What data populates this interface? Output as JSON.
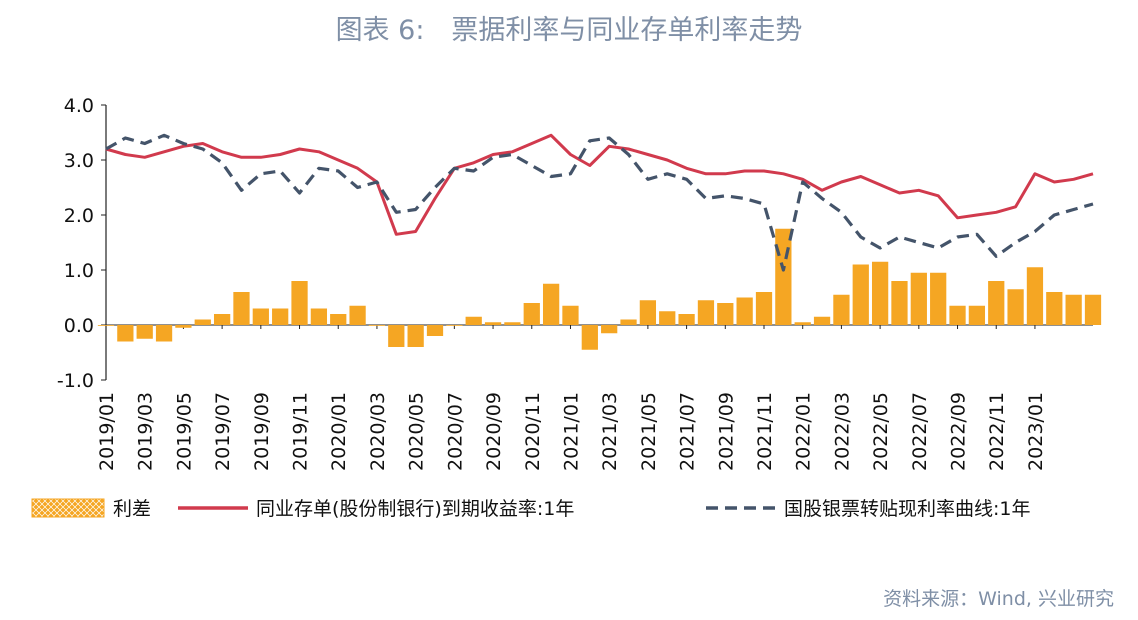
{
  "title": "图表 6:　票据利率与同业存单利率走势",
  "source": "资料来源：Wind, 兴业研究",
  "colors": {
    "spread": "#F5A623",
    "ncd": "#D13A4D",
    "bill": "#44546A"
  },
  "chart_data": {
    "type": "line",
    "ylim": [
      -1.0,
      4.0
    ],
    "y_ticks": [
      "4.0",
      "3.0",
      "2.0",
      "1.0",
      "0.0",
      "-1.0"
    ],
    "x_tick_labels": [
      "2019/01",
      "2019/03",
      "2019/05",
      "2019/07",
      "2019/09",
      "2019/11",
      "2020/01",
      "2020/03",
      "2020/05",
      "2020/07",
      "2020/09",
      "2020/11",
      "2021/01",
      "2021/03",
      "2021/05",
      "2021/07",
      "2021/09",
      "2021/11",
      "2022/01",
      "2022/03",
      "2022/05",
      "2022/07",
      "2022/09",
      "2022/11",
      "2023/01"
    ],
    "x_range": [
      "2019/01",
      "2023/04"
    ],
    "legend": [
      {
        "name": "利差",
        "style": "hatched-bar"
      },
      {
        "name": "同业存单(股份制银行)到期收益率:1年",
        "style": "solid-line"
      },
      {
        "name": "国股银票转贴现利率曲线:1年",
        "style": "dashed-line"
      }
    ],
    "series": [
      {
        "name": "同业存单(股份制银行)到期收益率:1年",
        "type": "line",
        "x": [
          "2019/01",
          "2019/02",
          "2019/03",
          "2019/04",
          "2019/05",
          "2019/06",
          "2019/07",
          "2019/08",
          "2019/09",
          "2019/10",
          "2019/11",
          "2019/12",
          "2020/01",
          "2020/02",
          "2020/03",
          "2020/04",
          "2020/05",
          "2020/06",
          "2020/07",
          "2020/08",
          "2020/09",
          "2020/10",
          "2020/11",
          "2020/12",
          "2021/01",
          "2021/02",
          "2021/03",
          "2021/04",
          "2021/05",
          "2021/06",
          "2021/07",
          "2021/08",
          "2021/09",
          "2021/10",
          "2021/11",
          "2021/12",
          "2022/01",
          "2022/02",
          "2022/03",
          "2022/04",
          "2022/05",
          "2022/06",
          "2022/07",
          "2022/08",
          "2022/09",
          "2022/10",
          "2022/11",
          "2022/12",
          "2023/01",
          "2023/02",
          "2023/03",
          "2023/04"
        ],
        "values": [
          3.2,
          3.1,
          3.05,
          3.15,
          3.25,
          3.3,
          3.15,
          3.05,
          3.05,
          3.1,
          3.2,
          3.15,
          3.0,
          2.85,
          2.6,
          1.65,
          1.7,
          2.3,
          2.85,
          2.95,
          3.1,
          3.15,
          3.3,
          3.45,
          3.1,
          2.9,
          3.25,
          3.2,
          3.1,
          3.0,
          2.85,
          2.75,
          2.75,
          2.8,
          2.8,
          2.75,
          2.65,
          2.45,
          2.6,
          2.7,
          2.55,
          2.4,
          2.45,
          2.35,
          1.95,
          2.0,
          2.05,
          2.15,
          2.75,
          2.6,
          2.65,
          2.75
        ]
      },
      {
        "name": "国股银票转贴现利率曲线:1年",
        "type": "line",
        "x": [
          "2019/01",
          "2019/02",
          "2019/03",
          "2019/04",
          "2019/05",
          "2019/06",
          "2019/07",
          "2019/08",
          "2019/09",
          "2019/10",
          "2019/11",
          "2019/12",
          "2020/01",
          "2020/02",
          "2020/03",
          "2020/04",
          "2020/05",
          "2020/06",
          "2020/07",
          "2020/08",
          "2020/09",
          "2020/10",
          "2020/11",
          "2020/12",
          "2021/01",
          "2021/02",
          "2021/03",
          "2021/04",
          "2021/05",
          "2021/06",
          "2021/07",
          "2021/08",
          "2021/09",
          "2021/10",
          "2021/11",
          "2021/12",
          "2022/01",
          "2022/02",
          "2022/03",
          "2022/04",
          "2022/05",
          "2022/06",
          "2022/07",
          "2022/08",
          "2022/09",
          "2022/10",
          "2022/11",
          "2022/12",
          "2023/01",
          "2023/02",
          "2023/03",
          "2023/04"
        ],
        "values": [
          3.2,
          3.4,
          3.3,
          3.45,
          3.3,
          3.2,
          2.95,
          2.45,
          2.75,
          2.8,
          2.4,
          2.85,
          2.8,
          2.5,
          2.6,
          2.05,
          2.1,
          2.5,
          2.85,
          2.8,
          3.05,
          3.1,
          2.9,
          2.7,
          2.75,
          3.35,
          3.4,
          3.1,
          2.65,
          2.75,
          2.65,
          2.3,
          2.35,
          2.3,
          2.2,
          1.0,
          2.6,
          2.3,
          2.05,
          1.6,
          1.4,
          1.6,
          1.5,
          1.4,
          1.6,
          1.65,
          1.25,
          1.5,
          1.7,
          2.0,
          2.1,
          2.2
        ]
      },
      {
        "name": "利差",
        "type": "bar",
        "x": [
          "2019/01",
          "2019/02",
          "2019/03",
          "2019/04",
          "2019/05",
          "2019/06",
          "2019/07",
          "2019/08",
          "2019/09",
          "2019/10",
          "2019/11",
          "2019/12",
          "2020/01",
          "2020/02",
          "2020/03",
          "2020/04",
          "2020/05",
          "2020/06",
          "2020/07",
          "2020/08",
          "2020/09",
          "2020/10",
          "2020/11",
          "2020/12",
          "2021/01",
          "2021/02",
          "2021/03",
          "2021/04",
          "2021/05",
          "2021/06",
          "2021/07",
          "2021/08",
          "2021/09",
          "2021/10",
          "2021/11",
          "2021/12",
          "2022/01",
          "2022/02",
          "2022/03",
          "2022/04",
          "2022/05",
          "2022/06",
          "2022/07",
          "2022/08",
          "2022/09",
          "2022/10",
          "2022/11",
          "2022/12",
          "2023/01",
          "2023/02",
          "2023/03",
          "2023/04"
        ],
        "values": [
          0.0,
          -0.3,
          -0.25,
          -0.3,
          -0.05,
          0.1,
          0.2,
          0.6,
          0.3,
          0.3,
          0.8,
          0.3,
          0.2,
          0.35,
          0.0,
          -0.4,
          -0.4,
          -0.2,
          0.0,
          0.15,
          0.05,
          0.05,
          0.4,
          0.75,
          0.35,
          -0.45,
          -0.15,
          0.1,
          0.45,
          0.25,
          0.2,
          0.45,
          0.4,
          0.5,
          0.6,
          1.75,
          0.05,
          0.15,
          0.55,
          1.1,
          1.15,
          0.8,
          0.95,
          0.95,
          0.35,
          0.35,
          0.8,
          0.65,
          1.05,
          0.6,
          0.55,
          0.55
        ]
      }
    ]
  }
}
